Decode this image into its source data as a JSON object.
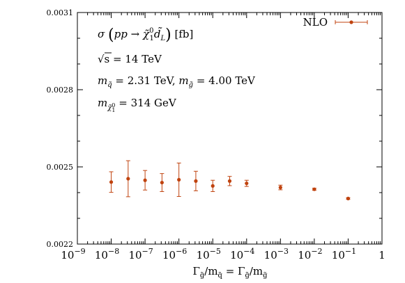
{
  "chart_data": {
    "type": "scatter",
    "title": "",
    "xlabel": "Γ_q̃/m_q̃ = Γ_g̃/m_g̃",
    "ylabel": "",
    "x_scale": "log",
    "xlim": [
      1e-09,
      1
    ],
    "ylim": [
      0.0022,
      0.0031
    ],
    "y_ticks": [
      "0.0022",
      "0.0025",
      "0.0028",
      "0.0031"
    ],
    "x_ticks": [
      {
        "base": "10",
        "exp": "−9"
      },
      {
        "base": "10",
        "exp": "−8"
      },
      {
        "base": "10",
        "exp": "−7"
      },
      {
        "base": "10",
        "exp": "−6"
      },
      {
        "base": "10",
        "exp": "−5"
      },
      {
        "base": "10",
        "exp": "−4"
      },
      {
        "base": "10",
        "exp": "−3"
      },
      {
        "base": "10",
        "exp": "−2"
      },
      {
        "base": "10",
        "exp": "−1"
      },
      {
        "base": "1",
        "exp": ""
      }
    ],
    "grid": false,
    "legend_position": "top-right",
    "series": [
      {
        "name": "NLO",
        "color": "#c0430f",
        "x": [
          1e-08,
          3.16e-08,
          1e-07,
          3.16e-07,
          1e-06,
          3.16e-06,
          1e-05,
          3.16e-05,
          0.0001,
          0.001,
          0.01,
          0.1
        ],
        "y": [
          0.002441,
          0.002454,
          0.002448,
          0.002439,
          0.00245,
          0.002445,
          0.002426,
          0.002445,
          0.002436,
          0.00242,
          0.002413,
          0.002377
        ],
        "yerr": [
          4e-05,
          7e-05,
          3.8e-05,
          3.5e-05,
          6.5e-05,
          3.8e-05,
          2.2e-05,
          1.8e-05,
          1.2e-05,
          9e-06,
          4e-06,
          3e-06
        ]
      }
    ],
    "annotations": {
      "process": {
        "sigma": "σ",
        "pp": "pp",
        "arrow": "→",
        "chi": "χ̃",
        "chi_sup": "0",
        "chi_sub": "1",
        "d": "d̃",
        "d_sub": "L",
        "unit": "[fb]"
      },
      "energy": {
        "sqrt_s": "√s",
        "value": "= 14 TeV"
      },
      "masses": {
        "mq": "m",
        "mq_sub": "q̃",
        "mq_val": "= 2.31 TeV,",
        "mg": "m",
        "mg_sub": "g̃",
        "mg_val": "= 4.00 TeV"
      },
      "neutralino": {
        "m": "m",
        "sub": "χ̃",
        "sub_sup": "0",
        "sub_sub": "1",
        "val": "= 314 GeV"
      }
    }
  }
}
